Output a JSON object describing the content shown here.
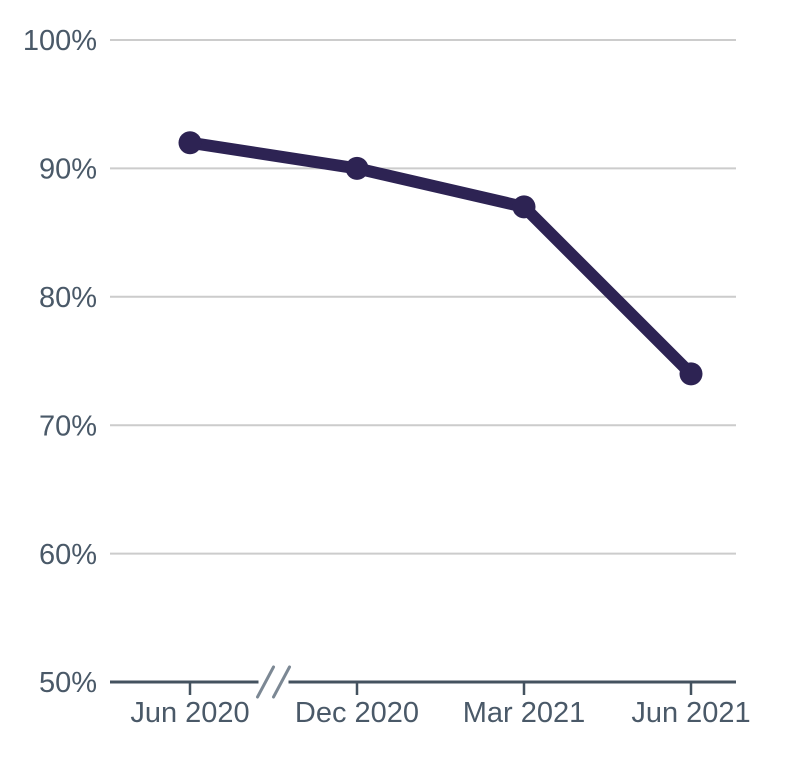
{
  "chart_data": {
    "type": "line",
    "title": "",
    "categories": [
      "Jun 2020",
      "Dec 2020",
      "Mar 2021",
      "Jun 2021"
    ],
    "series": [
      {
        "name": "value",
        "values": [
          92,
          90,
          87,
          74
        ]
      }
    ],
    "unit": "%",
    "ylim": [
      50,
      100
    ],
    "yticks": [
      50,
      60,
      70,
      80,
      90,
      100
    ],
    "ytick_suffix": "%",
    "grid": true,
    "legend": false,
    "x_axis_break": {
      "present": true,
      "between_categories": [
        "Jun 2020",
        "Dec 2020"
      ],
      "symbol": "//"
    },
    "colors": {
      "background": "#ffffff",
      "line": "#2d2353",
      "marker": "#2d2353",
      "gridline": "#cccccc",
      "axis": "#44525f",
      "tick": "#44525f",
      "label": "#4a5968",
      "axis_break": "#7c8894"
    }
  }
}
